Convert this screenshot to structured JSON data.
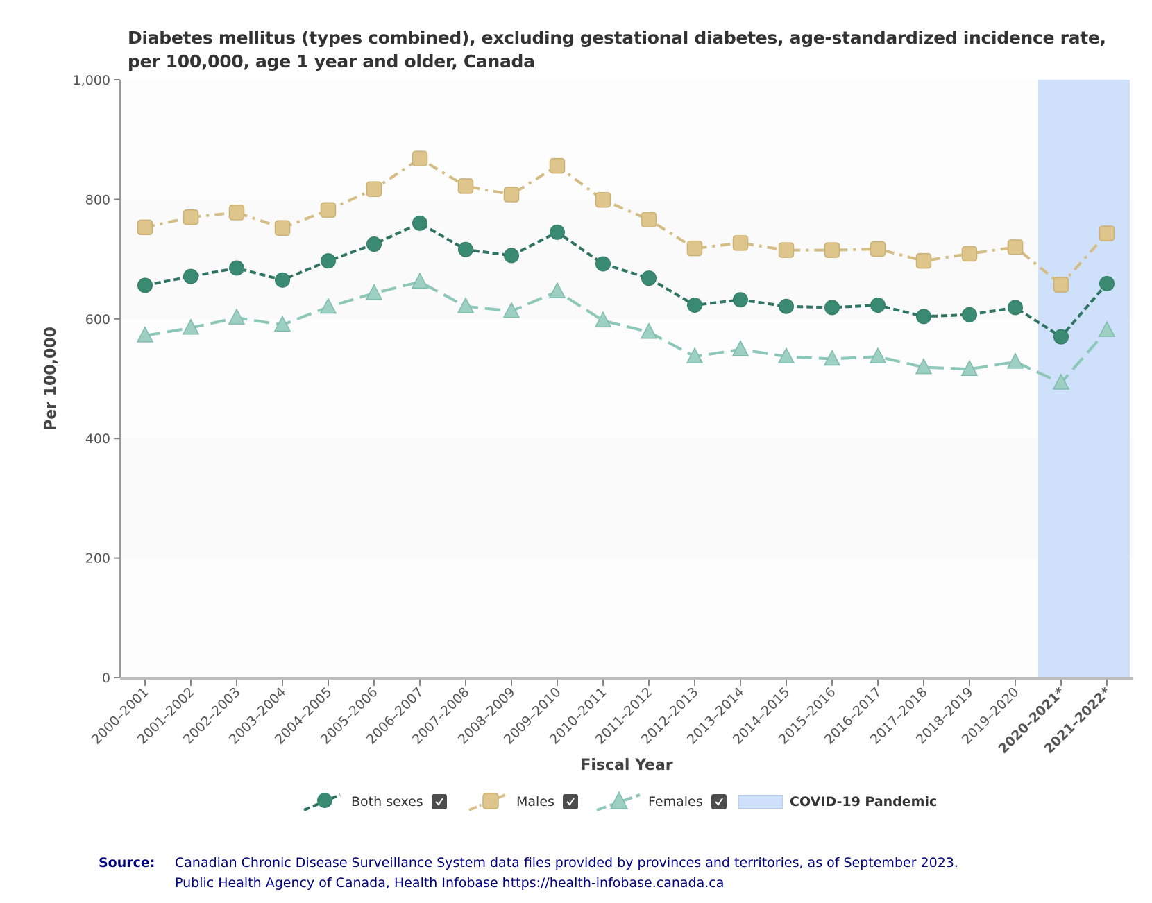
{
  "chart_data": {
    "type": "line",
    "title": "Diabetes mellitus (types combined), excluding gestational diabetes, age-standardized incidence rate, per 100,000, age 1 year and older, Canada",
    "xlabel": "Fiscal Year",
    "ylabel": "Per 100,000",
    "ylim": [
      0,
      1000
    ],
    "yticks": [
      0,
      200,
      400,
      600,
      800,
      1000
    ],
    "ytick_labels": [
      "0",
      "200",
      "400",
      "600",
      "800",
      "1,000"
    ],
    "grid": "horizontal alternating bands",
    "categories": [
      "2000–2001",
      "2001–2002",
      "2002–2003",
      "2003–2004",
      "2004–2005",
      "2005–2006",
      "2006–2007",
      "2007–2008",
      "2008–2009",
      "2009–2010",
      "2010–2011",
      "2011–2012",
      "2012–2013",
      "2013–2014",
      "2014–2015",
      "2015–2016",
      "2016–2017",
      "2017–2018",
      "2018–2019",
      "2019–2020",
      "2020–2021*",
      "2021–2022*"
    ],
    "bold_categories": [
      "2020–2021*",
      "2021–2022*"
    ],
    "series": [
      {
        "name": "Males",
        "color": "#d9c28a",
        "marker": "square",
        "line_style": "dash-dot",
        "values": [
          753,
          770,
          778,
          752,
          782,
          817,
          868,
          822,
          808,
          856,
          799,
          766,
          718,
          727,
          715,
          715,
          717,
          697,
          709,
          720,
          657,
          743
        ]
      },
      {
        "name": "Both sexes",
        "color": "#3a8a72",
        "marker": "circle",
        "line_style": "dashed",
        "values": [
          656,
          671,
          685,
          665,
          697,
          725,
          760,
          716,
          706,
          745,
          692,
          668,
          623,
          632,
          621,
          619,
          623,
          604,
          607,
          619,
          570,
          659
        ]
      },
      {
        "name": "Females",
        "color": "#8cc7b8",
        "marker": "triangle",
        "line_style": "long-dash",
        "values": [
          572,
          585,
          602,
          590,
          620,
          643,
          662,
          621,
          613,
          646,
          597,
          578,
          537,
          549,
          537,
          533,
          537,
          519,
          516,
          528,
          493,
          581
        ]
      }
    ],
    "shaded_regions": [
      {
        "label": "COVID-19 Pandemic",
        "from_category": "2020–2021*",
        "to_category": "2021–2022*",
        "color": "#cfe0fa"
      }
    ],
    "legend": {
      "placement": "bottom-center",
      "items": [
        {
          "label": "Both sexes",
          "checked": true
        },
        {
          "label": "Males",
          "checked": true
        },
        {
          "label": "Females",
          "checked": true
        },
        {
          "label": "COVID-19 Pandemic"
        }
      ]
    }
  },
  "source": {
    "label": "Source:",
    "line1": "Canadian Chronic Disease Surveillance System data files provided by provinces and territories, as of September 2023.",
    "line2": "Public Health Agency of Canada, Health Infobase https://health-infobase.canada.ca"
  }
}
